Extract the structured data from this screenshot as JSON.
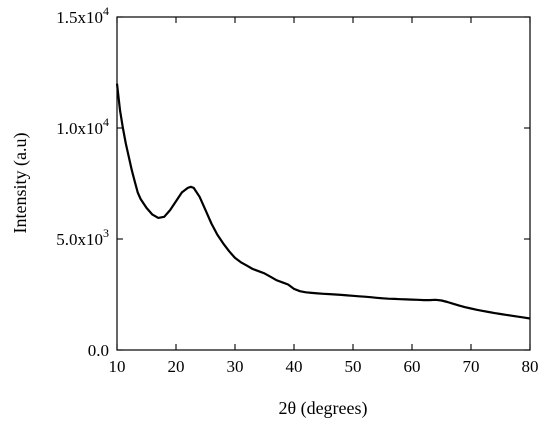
{
  "chart_data": {
    "type": "line",
    "title": "",
    "xlabel": "2θ (degrees)",
    "ylabel": "Intensity (a.u)",
    "xlim": [
      10,
      80
    ],
    "ylim": [
      0,
      15000
    ],
    "x_ticks": [
      10,
      20,
      30,
      40,
      50,
      60,
      70,
      80
    ],
    "x_tick_labels": [
      "10",
      "20",
      "30",
      "40",
      "50",
      "60",
      "70",
      "80"
    ],
    "y_ticks": [
      0,
      5000,
      10000,
      15000
    ],
    "y_tick_labels": [
      {
        "mantissa": "0.0",
        "exponent": ""
      },
      {
        "mantissa": "5.0x10",
        "exponent": "3"
      },
      {
        "mantissa": "1.0x10",
        "exponent": "4"
      },
      {
        "mantissa": "1.5x10",
        "exponent": "4"
      }
    ],
    "grid": false,
    "legend": "none",
    "line_color": "#000000",
    "series": [
      {
        "x": [
          10,
          10.5,
          11,
          11.5,
          12,
          12.5,
          13,
          13.5,
          14,
          15,
          16,
          17,
          18,
          19,
          20,
          21,
          22,
          22.5,
          23,
          24,
          25,
          26,
          27,
          28,
          29,
          30,
          31,
          32,
          33,
          34,
          35,
          36,
          37,
          38,
          39,
          40,
          41,
          42,
          43,
          44,
          45,
          46,
          47,
          48,
          49,
          50,
          51,
          52,
          53,
          54,
          55,
          56,
          57,
          58,
          59,
          60,
          61,
          62,
          63,
          64,
          65,
          66,
          67,
          68,
          69,
          70,
          71,
          72,
          73,
          74,
          75,
          76,
          77,
          78,
          79,
          80
        ],
        "values": [
          12000,
          10800,
          10000,
          9300,
          8700,
          8100,
          7600,
          7100,
          6800,
          6400,
          6100,
          5950,
          6000,
          6300,
          6700,
          7100,
          7300,
          7350,
          7300,
          6900,
          6300,
          5700,
          5200,
          4800,
          4450,
          4150,
          3950,
          3800,
          3650,
          3550,
          3450,
          3300,
          3150,
          3050,
          2950,
          2750,
          2650,
          2600,
          2570,
          2550,
          2530,
          2520,
          2500,
          2480,
          2460,
          2440,
          2420,
          2400,
          2380,
          2350,
          2330,
          2310,
          2300,
          2290,
          2280,
          2270,
          2260,
          2250,
          2250,
          2260,
          2230,
          2160,
          2080,
          2000,
          1930,
          1870,
          1810,
          1760,
          1710,
          1660,
          1620,
          1580,
          1540,
          1500,
          1460,
          1420
        ]
      }
    ]
  }
}
